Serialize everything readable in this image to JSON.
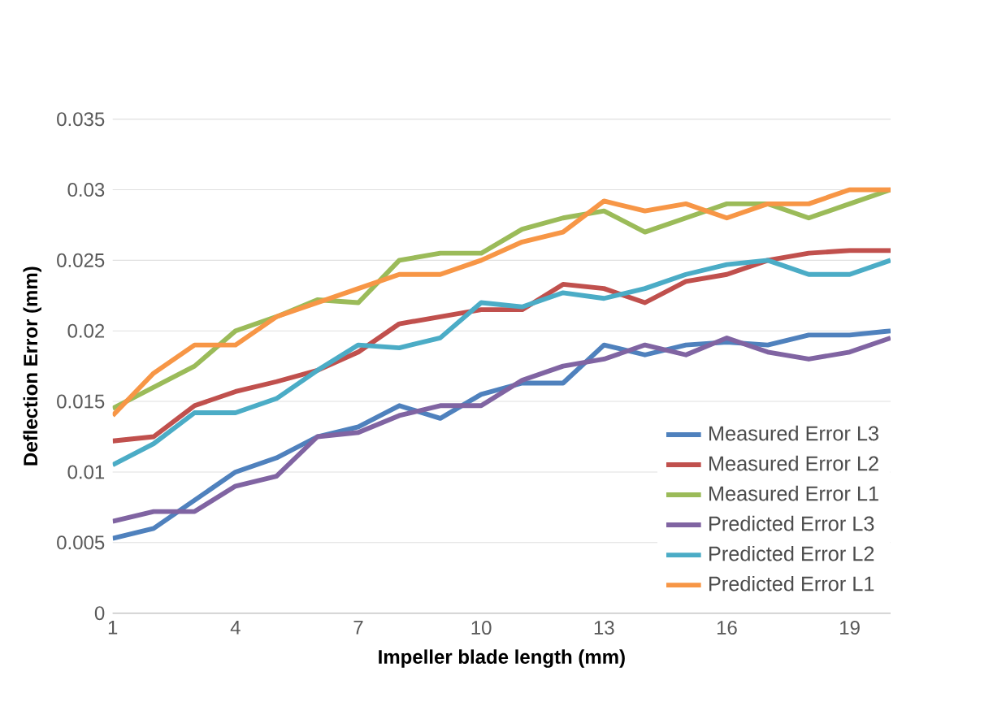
{
  "chart_data": {
    "type": "line",
    "xlabel": "Impeller blade length (mm)",
    "ylabel": "Deflection Error (mm)",
    "x": [
      1,
      2,
      3,
      4,
      5,
      6,
      7,
      8,
      9,
      10,
      11,
      12,
      13,
      14,
      15,
      16,
      17,
      18,
      19,
      20
    ],
    "xlim": [
      1,
      20
    ],
    "xticks": [
      1,
      4,
      7,
      10,
      13,
      16,
      19
    ],
    "ylim": [
      0,
      0.035
    ],
    "yticks": [
      0,
      0.005,
      0.01,
      0.015,
      0.02,
      0.025,
      0.03,
      0.035
    ],
    "grid": "y",
    "legend": "right",
    "line_style": "solid",
    "marker": "none",
    "series": [
      {
        "name": "Measured Error L3",
        "color": "#4f81bd",
        "values": [
          0.0053,
          0.006,
          0.008,
          0.01,
          0.011,
          0.0125,
          0.0132,
          0.0147,
          0.0138,
          0.0155,
          0.0163,
          0.0163,
          0.019,
          0.0183,
          0.019,
          0.0192,
          0.019,
          0.0197,
          0.0197,
          0.02
        ]
      },
      {
        "name": "Measured Error L2",
        "color": "#c0504d",
        "values": [
          0.0122,
          0.0125,
          0.0147,
          0.0157,
          0.0164,
          0.0172,
          0.0185,
          0.0205,
          0.021,
          0.0215,
          0.0215,
          0.0233,
          0.023,
          0.022,
          0.0235,
          0.024,
          0.025,
          0.0255,
          0.0257,
          0.0257
        ]
      },
      {
        "name": "Measured Error L1",
        "color": "#9bbb59",
        "values": [
          0.0145,
          0.016,
          0.0175,
          0.02,
          0.021,
          0.0222,
          0.022,
          0.025,
          0.0255,
          0.0255,
          0.0272,
          0.028,
          0.0285,
          0.027,
          0.028,
          0.029,
          0.029,
          0.028,
          0.029,
          0.03
        ]
      },
      {
        "name": "Predicted Error L3",
        "color": "#8064a2",
        "values": [
          0.0065,
          0.0072,
          0.0072,
          0.009,
          0.0097,
          0.0125,
          0.0128,
          0.014,
          0.0147,
          0.0147,
          0.0165,
          0.0175,
          0.018,
          0.019,
          0.0183,
          0.0195,
          0.0185,
          0.018,
          0.0185,
          0.0195
        ]
      },
      {
        "name": "Predicted Error L2",
        "color": "#4bacc6",
        "values": [
          0.0105,
          0.012,
          0.0142,
          0.0142,
          0.0152,
          0.0172,
          0.019,
          0.0188,
          0.0195,
          0.022,
          0.0217,
          0.0227,
          0.0223,
          0.023,
          0.024,
          0.0247,
          0.025,
          0.024,
          0.024,
          0.025
        ]
      },
      {
        "name": "Predicted Error L1",
        "color": "#f79646",
        "values": [
          0.014,
          0.017,
          0.019,
          0.019,
          0.021,
          0.022,
          0.023,
          0.024,
          0.024,
          0.025,
          0.0263,
          0.027,
          0.0292,
          0.0285,
          0.029,
          0.028,
          0.029,
          0.029,
          0.03,
          0.03
        ]
      }
    ]
  }
}
